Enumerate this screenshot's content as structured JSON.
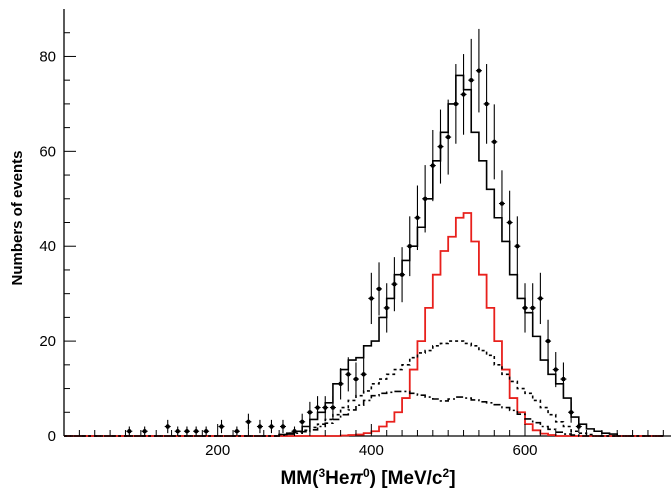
{
  "chart_data": {
    "type": "line",
    "title": "",
    "xlabel": {
      "prefix": "MM(",
      "sup1": "3",
      "mid": "He",
      "pi": "π",
      "sup2": "0",
      "suffix": ") [MeV/c",
      "sup3": "2",
      "end": "]"
    },
    "ylabel": "Numbers of events",
    "xlim": [
      0,
      790
    ],
    "ylim": [
      0,
      90
    ],
    "xticks": [
      200,
      400,
      600
    ],
    "yticks": [
      0,
      20,
      40,
      60,
      80
    ],
    "bin_width": 10,
    "bin_edges": [
      0,
      10,
      20,
      30,
      40,
      50,
      60,
      70,
      80,
      90,
      100,
      110,
      120,
      130,
      140,
      150,
      160,
      170,
      180,
      190,
      200,
      210,
      220,
      230,
      240,
      250,
      260,
      270,
      280,
      290,
      300,
      310,
      320,
      330,
      340,
      350,
      360,
      370,
      380,
      390,
      400,
      410,
      420,
      430,
      440,
      450,
      460,
      470,
      480,
      490,
      500,
      510,
      520,
      530,
      540,
      550,
      560,
      570,
      580,
      590,
      600,
      610,
      620,
      630,
      640,
      650,
      660,
      670,
      680,
      690,
      700,
      710,
      720,
      730,
      740,
      750,
      760,
      770,
      780
    ],
    "series": [
      {
        "kind": "total",
        "color": "#000000",
        "dash": "",
        "values": [
          0,
          0,
          0,
          0,
          0,
          0,
          0,
          0,
          0,
          0,
          0,
          0,
          0,
          0,
          0,
          0,
          0,
          0,
          0,
          0,
          0,
          0,
          0,
          0,
          0,
          0,
          0,
          0,
          0.3,
          0.6,
          1,
          2,
          3.5,
          5,
          7,
          11,
          14,
          16,
          16.5,
          19,
          20,
          25,
          29,
          34,
          37,
          40,
          44,
          50,
          58,
          64,
          70,
          76,
          73,
          64,
          58,
          52,
          46,
          41,
          34,
          29,
          26,
          21,
          16,
          13,
          11,
          8,
          4,
          2.5,
          1.5,
          1,
          0.6,
          0.4,
          0,
          0,
          0,
          0,
          0,
          0
        ]
      },
      {
        "kind": "signal",
        "color": "#e8201c",
        "dash": "",
        "values": [
          0,
          0,
          0,
          0,
          0,
          0,
          0,
          0,
          0,
          0,
          0,
          0,
          0,
          0,
          0,
          0,
          0,
          0,
          0,
          0,
          0,
          0,
          0,
          0,
          0,
          0,
          0,
          0,
          0,
          0,
          0,
          0,
          0,
          0,
          0,
          0,
          0.1,
          0.2,
          0.3,
          0.6,
          1,
          2,
          3,
          5,
          8,
          14,
          20,
          27,
          34,
          39,
          42,
          46,
          47,
          41,
          34,
          27,
          20,
          14,
          8,
          5,
          2.5,
          1.2,
          0.5,
          0.2,
          0,
          0,
          0,
          0,
          0,
          0,
          0,
          0,
          0,
          0,
          0,
          0,
          0,
          0
        ]
      },
      {
        "kind": "background-1",
        "color": "#000000",
        "dash": "3,3",
        "values": [
          0,
          0,
          0,
          0,
          0,
          0,
          0,
          0,
          0,
          0,
          0,
          0,
          0,
          0,
          0,
          0,
          0,
          0,
          0,
          0,
          0,
          0,
          0,
          0,
          0,
          0,
          0,
          0,
          0.3,
          0.6,
          0.9,
          1.2,
          1.8,
          2.5,
          3.5,
          4.5,
          6,
          7.5,
          8.5,
          9.5,
          11,
          12,
          13,
          14,
          15,
          16.5,
          17.5,
          18,
          19,
          19.5,
          20,
          20,
          19.5,
          19,
          18,
          17,
          15,
          13,
          11.5,
          10,
          9,
          7.5,
          6,
          4.5,
          3,
          2,
          1,
          0.6,
          0.3,
          0,
          0,
          0,
          0,
          0,
          0,
          0,
          0,
          0
        ]
      },
      {
        "kind": "background-2",
        "color": "#000000",
        "dash": "7,3,2,3",
        "values": [
          0,
          0,
          0,
          0,
          0,
          0,
          0,
          0,
          0,
          0,
          0,
          0,
          0,
          0,
          0,
          0,
          0,
          0,
          0,
          0,
          0,
          0,
          0,
          0,
          0,
          0,
          0,
          0,
          0.2,
          0.4,
          0.6,
          0.9,
          1.3,
          2,
          2.7,
          3.5,
          4.5,
          5.5,
          6.5,
          7.5,
          8.5,
          9,
          9.2,
          9.4,
          9.4,
          9,
          8.6,
          8.2,
          7.8,
          7.4,
          7.8,
          8.2,
          8,
          7.6,
          7.2,
          7,
          6.6,
          6,
          5.4,
          4.6,
          3.6,
          2.8,
          2,
          1.4,
          0.8,
          0.4,
          0.2,
          0,
          0,
          0,
          0,
          0,
          0,
          0,
          0,
          0,
          0,
          0
        ]
      }
    ],
    "data_points": {
      "x": [
        85,
        105,
        135,
        148,
        160,
        172,
        185,
        205,
        225,
        240,
        255,
        270,
        285,
        300,
        310,
        320,
        330,
        340,
        350,
        360,
        370,
        380,
        390,
        400,
        410,
        420,
        430,
        440,
        450,
        460,
        470,
        480,
        490,
        500,
        510,
        520,
        530,
        540,
        550,
        560,
        570,
        580,
        590,
        600,
        610,
        620,
        630,
        640,
        650,
        660,
        670
      ],
      "y": [
        1,
        1,
        2,
        1,
        1,
        1,
        1,
        2,
        1,
        3,
        2,
        2,
        2,
        1,
        3,
        5,
        6,
        6,
        6,
        11,
        13,
        12,
        13,
        29,
        31,
        27,
        32,
        34,
        40,
        46,
        50,
        57,
        61,
        63,
        70,
        72,
        75,
        77,
        70,
        62,
        49,
        45,
        40,
        27,
        27,
        29,
        20,
        14,
        12,
        5,
        2
      ],
      "yerr": [
        1,
        1,
        1.4,
        1,
        1,
        1,
        1,
        1.4,
        1,
        1.7,
        1.4,
        1.4,
        1.4,
        1,
        1.7,
        2.2,
        2.4,
        2.4,
        2.4,
        3.3,
        3.6,
        3.5,
        3.6,
        5.4,
        5.6,
        5.2,
        5.7,
        5.8,
        6.3,
        6.8,
        7.1,
        7.5,
        7.8,
        7.9,
        8.4,
        8.5,
        8.7,
        8.8,
        8.4,
        7.9,
        7,
        6.7,
        6.3,
        5.2,
        5.2,
        5.4,
        4.5,
        3.7,
        3.5,
        2.2,
        1.4
      ]
    }
  }
}
